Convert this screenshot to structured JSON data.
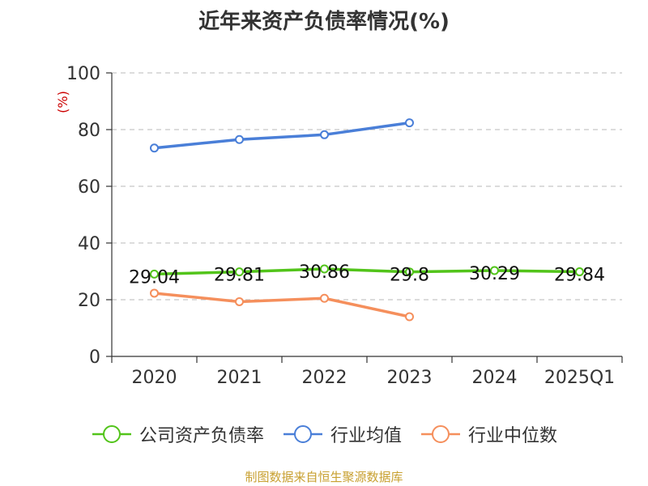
{
  "chart_data": {
    "type": "line",
    "title": "近年来资产负债率情况(%)",
    "ylabel": "(%)",
    "ylim": [
      0,
      100
    ],
    "yticks": [
      0,
      20,
      40,
      60,
      80,
      100
    ],
    "categories": [
      "2020",
      "2021",
      "2022",
      "2023",
      "2024",
      "2025Q1"
    ],
    "grid": true,
    "legend_position": "bottom",
    "series": [
      {
        "name": "公司资产负债率",
        "color": "#52c41a",
        "values": [
          29.04,
          29.81,
          30.86,
          29.8,
          30.29,
          29.84
        ],
        "labels": [
          "29.04",
          "29.81",
          "30.86",
          "29.8",
          "30.29",
          "29.84"
        ]
      },
      {
        "name": "行业均值",
        "color": "#4a7fd8",
        "values": [
          73.5,
          76.5,
          78.2,
          82.4,
          null,
          null
        ]
      },
      {
        "name": "行业中位数",
        "color": "#f58f5c",
        "values": [
          22.3,
          19.3,
          20.5,
          14.0,
          null,
          null
        ]
      }
    ]
  },
  "footer": {
    "source": "制图数据来自恒生聚源数据库"
  }
}
